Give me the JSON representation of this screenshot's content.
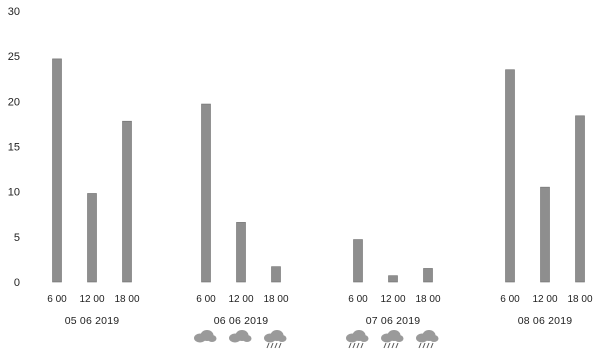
{
  "colors": {
    "bar": "#8e8e8e",
    "bar_edge": "#6f6f6f",
    "text": "#222222",
    "icon": "#9a9a9a"
  },
  "chart_data": {
    "type": "bar",
    "title": "",
    "xlabel": "",
    "ylabel": "",
    "ylim": [
      0,
      30
    ],
    "y_ticks": [
      "0",
      "5",
      "10",
      "15",
      "20",
      "25",
      "30"
    ],
    "grid": false,
    "legend": "none",
    "groups": [
      {
        "date": "05 06 2019",
        "times": [
          "6 00",
          "12 00",
          "18 00"
        ],
        "values": [
          24.7,
          9.8,
          17.8
        ],
        "icons": []
      },
      {
        "date": "06 06 2019",
        "times": [
          "6 00",
          "12 00",
          "18 00"
        ],
        "values": [
          19.7,
          6.6,
          1.7
        ],
        "icons": [
          "cloud-icon",
          "cloud-icon",
          "cloud-rain-icon"
        ]
      },
      {
        "date": "07 06 2019",
        "times": [
          "6 00",
          "12 00",
          "18 00"
        ],
        "values": [
          4.7,
          0.7,
          1.5
        ],
        "icons": [
          "cloud-rain-icon",
          "cloud-rain-icon",
          "cloud-rain-icon"
        ]
      },
      {
        "date": "08 06 2019",
        "times": [
          "6 00",
          "12 00",
          "18 00"
        ],
        "values": [
          23.5,
          10.5,
          18.4
        ],
        "icons": []
      }
    ]
  }
}
